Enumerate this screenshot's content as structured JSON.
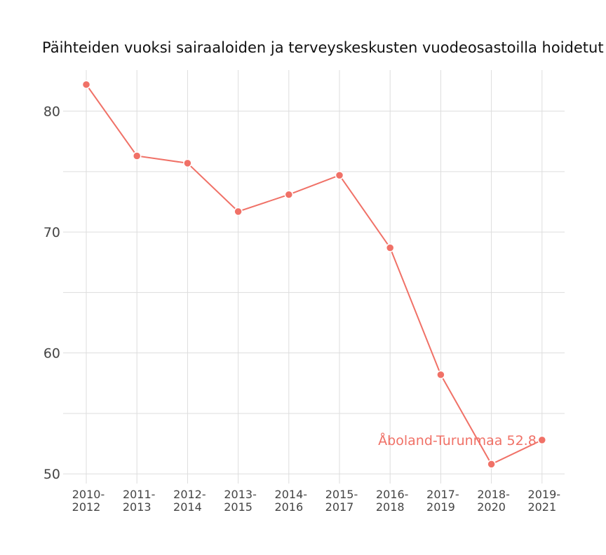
{
  "chart_data": {
    "type": "line",
    "title": "Päihteiden vuoksi sairaaloiden ja terveyskeskusten vuodeosastoilla hoidetut p",
    "xlabel": "",
    "ylabel": "",
    "categories": [
      "2010-2012",
      "2011-2013",
      "2012-2014",
      "2013-2015",
      "2014-2016",
      "2015-2017",
      "2016-2018",
      "2017-2019",
      "2018-2020",
      "2019-2021"
    ],
    "x_tick_lines": [
      [
        "2010-",
        "2012"
      ],
      [
        "2011-",
        "2013"
      ],
      [
        "2012-",
        "2014"
      ],
      [
        "2013-",
        "2015"
      ],
      [
        "2014-",
        "2016"
      ],
      [
        "2015-",
        "2017"
      ],
      [
        "2016-",
        "2018"
      ],
      [
        "2017-",
        "2019"
      ],
      [
        "2018-",
        "2020"
      ],
      [
        "2019-",
        "2021"
      ]
    ],
    "series": [
      {
        "name": "Åboland-Turunmaa",
        "color": "#f07167",
        "values": [
          82.2,
          76.3,
          75.7,
          71.7,
          73.1,
          74.7,
          68.7,
          58.2,
          50.8,
          52.8
        ]
      }
    ],
    "end_label": "Åboland-Turunmaa 52.8",
    "yticks": [
      50,
      60,
      70,
      80
    ],
    "ylim": [
      49.2,
      83.4
    ],
    "grid": true,
    "legend": "none"
  }
}
